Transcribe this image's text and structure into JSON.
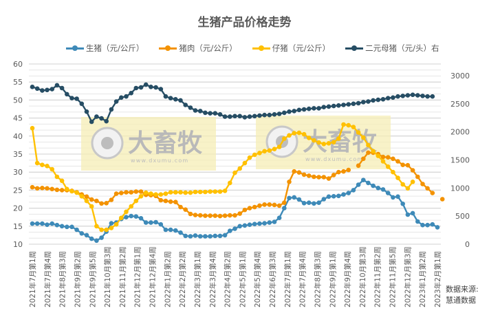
{
  "chart_data": {
    "type": "line",
    "title": "生猪产品价格走势",
    "source_note": [
      "数据来源:",
      "慧通数据"
    ],
    "left_axis": {
      "min": 10,
      "max": 60,
      "step": 5,
      "ticks": [
        "60",
        "55",
        "50",
        "45",
        "40",
        "35",
        "30",
        "25",
        "20",
        "15",
        "10"
      ]
    },
    "right_axis": {
      "min": 0,
      "max": 3000,
      "step": 500,
      "ticks": [
        "3000",
        "2500",
        "2000",
        "1500",
        "1000",
        "500",
        "0"
      ]
    },
    "grid": true,
    "legend_position": "top",
    "x_tick_labels": [
      "2021年7月第1周",
      "2021年7月第4周",
      "2021年8月第3周",
      "2021年9月第2周",
      "2021年9月第5周",
      "2021年10月第3周",
      "2021年11月第2周",
      "2021年12月第1周",
      "2021年12月第4周",
      "2022年1月第2周",
      "2022年2月第2周",
      "2022年3月第1周",
      "2022年3月第4周",
      "2022年4月第2周",
      "2022年5月第1周",
      "2022年5月第4周",
      "2022年6月第3周",
      "2022年7月第1周",
      "2022年7月第4周",
      "2022年8月第3周",
      "2022年9月第1周",
      "2022年9月第4周",
      "2022年10月第3周",
      "2022年11月第2周",
      "2022年11月第5周",
      "2022年12月第3周",
      "2023年1月第2周",
      "2023年2月第1周"
    ],
    "series": [
      {
        "name": "生猪（元/公斤）",
        "axis": "left",
        "color": "#3E8AB8",
        "values": [
          15.7,
          15.7,
          15.7,
          15.4,
          15.7,
          15.3,
          15.0,
          14.8,
          14.8,
          14.0,
          13.0,
          12.5,
          11.5,
          11.0,
          11.8,
          13.5,
          15.8,
          16.0,
          17.0,
          17.5,
          17.8,
          17.7,
          17.2,
          16.0,
          16.0,
          16.1,
          15.5,
          14.0,
          14.0,
          13.8,
          13.2,
          12.3,
          12.2,
          12.4,
          12.2,
          12.2,
          12.2,
          12.3,
          12.3,
          12.5,
          13.7,
          14.3,
          15.0,
          15.2,
          15.4,
          15.6,
          15.7,
          15.8,
          16.0,
          16.2,
          17.3,
          20.0,
          22.8,
          23.0,
          22.4,
          21.4,
          21.5,
          21.3,
          21.5,
          22.5,
          23.2,
          23.3,
          23.4,
          23.8,
          24.2,
          25.0,
          26.5,
          27.8,
          27.0,
          26.2,
          25.6,
          25.2,
          24.2,
          23.0,
          23.2,
          21.2,
          18.2,
          18.6,
          16.3,
          15.3,
          15.3,
          15.5,
          14.7
        ]
      },
      {
        "name": "猪肉（元/公斤）",
        "axis": "left",
        "color": "#F39200",
        "values": [
          25.8,
          25.5,
          25.6,
          25.5,
          25.3,
          25.1,
          25.0,
          25.0,
          24.8,
          24.4,
          23.8,
          23.2,
          22.4,
          22.0,
          21.3,
          21.4,
          22.3,
          24.0,
          24.2,
          24.4,
          24.4,
          24.6,
          24.6,
          23.7,
          23.6,
          23.4,
          22.2,
          22.0,
          21.8,
          21.7,
          20.3,
          19.6,
          18.4,
          18.1,
          18.0,
          17.9,
          17.9,
          17.9,
          17.8,
          17.9,
          18.0,
          18.0,
          18.5,
          19.5,
          20.0,
          20.3,
          20.7,
          21.0,
          21.0,
          20.9,
          20.7,
          21.5,
          27.3,
          30.2,
          29.9,
          29.3,
          29.0,
          28.7,
          28.6,
          28.6,
          28.2,
          29.2,
          30.0,
          30.2,
          30.6,
          null,
          31.8,
          33.7,
          35.4,
          35.4,
          35.0,
          34.2,
          34.1,
          33.7,
          33.0,
          32.0,
          31.9,
          30.5,
          28.7,
          26.7,
          25.5,
          24.2,
          null,
          22.5
        ]
      },
      {
        "name": "仔猪（元/公斤）",
        "axis": "left",
        "color": "#FFC000",
        "values": [
          42.2,
          32.5,
          32.0,
          31.7,
          30.8,
          28.7,
          27.6,
          25.3,
          24.7,
          24.3,
          23.3,
          22.0,
          20.5,
          15.0,
          14.0,
          14.0,
          14.5,
          15.5,
          17.3,
          19.0,
          20.5,
          22.0,
          23.3,
          24.3,
          24.0,
          23.8,
          23.8,
          24.0,
          24.4,
          24.4,
          24.4,
          24.3,
          24.3,
          24.5,
          24.5,
          24.5,
          24.6,
          24.6,
          24.6,
          24.8,
          27.0,
          29.8,
          31.0,
          32.5,
          34.0,
          34.8,
          35.3,
          35.8,
          36.0,
          36.4,
          37.0,
          39.3,
          40.2,
          40.8,
          40.9,
          40.5,
          39.5,
          38.8,
          38.2,
          37.8,
          38.0,
          38.3,
          39.3,
          43.2,
          43.0,
          42.5,
          41.0,
          39.6,
          37.5,
          35.8,
          34.5,
          33.0,
          31.5,
          30.0,
          28.4,
          26.6,
          25.5,
          27.3
        ]
      },
      {
        "name": "二元母猪（元/头）右",
        "axis": "right",
        "color": "#264D64",
        "values": [
          2800,
          2770,
          2735,
          2745,
          2760,
          2830,
          2780,
          2670,
          2600,
          2590,
          2500,
          2360,
          2180,
          2270,
          2240,
          2190,
          2400,
          2540,
          2610,
          2630,
          2690,
          2780,
          2790,
          2840,
          2800,
          2790,
          2760,
          2630,
          2600,
          2580,
          2560,
          2480,
          2430,
          2380,
          2370,
          2340,
          2330,
          2330,
          2310,
          2270,
          2270,
          2280,
          2280,
          2260,
          2270,
          2280,
          2290,
          2300,
          2300,
          2310,
          2320,
          2340,
          2360,
          2370,
          2390,
          2400,
          2410,
          2420,
          2420,
          2440,
          2450,
          2460,
          2470,
          2480,
          2490,
          2500,
          2510,
          2530,
          2540,
          2560,
          2570,
          2580,
          2600,
          2610,
          2630,
          2640,
          2650,
          2660,
          2650,
          2640,
          2630,
          2630
        ]
      }
    ],
    "watermark": {
      "brand": "大畜牧",
      "url": "www.dxumu.com"
    }
  }
}
